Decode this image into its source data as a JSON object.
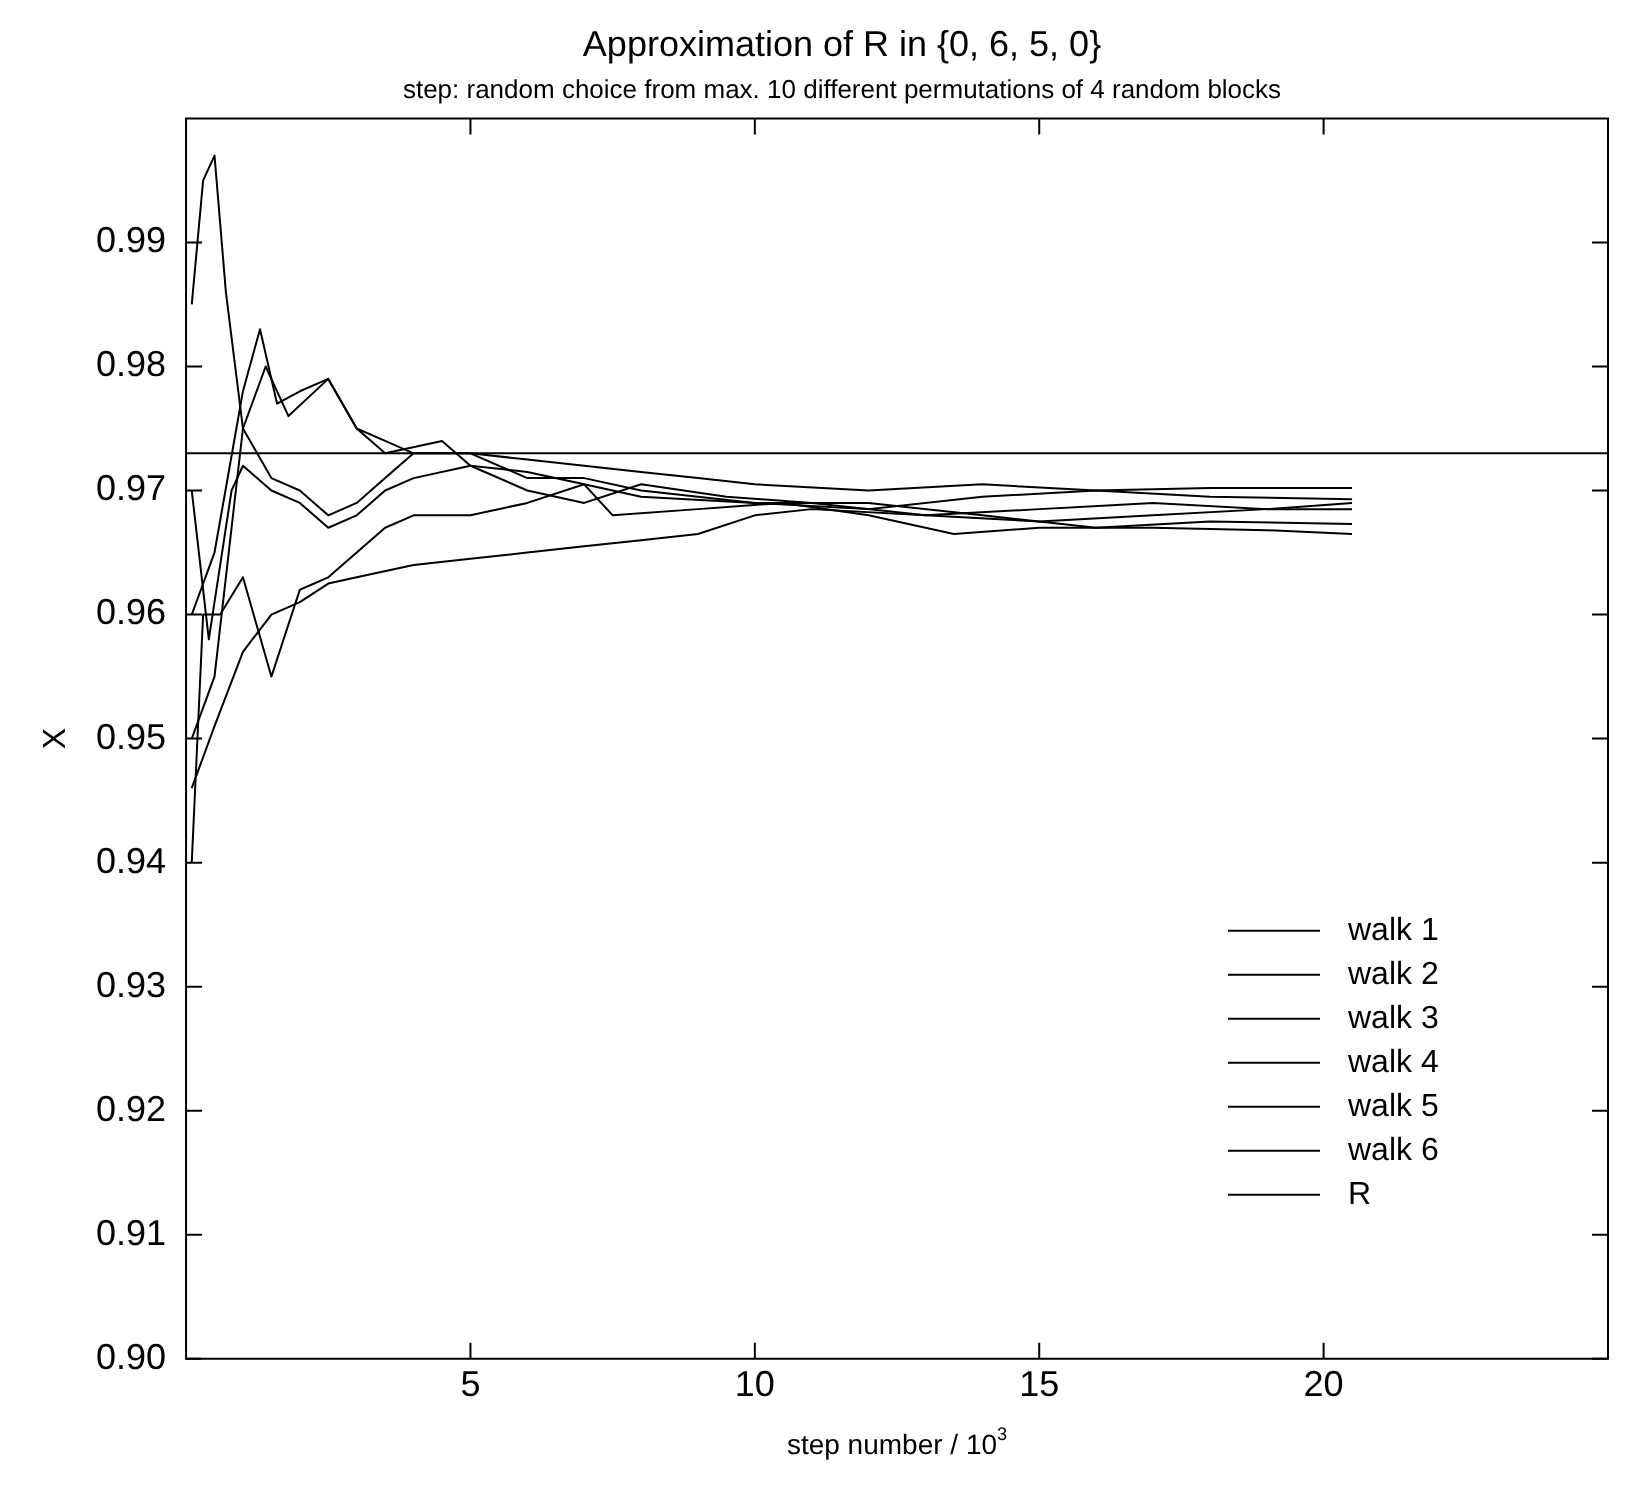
{
  "chart_data": {
    "type": "line",
    "title": "Approximation of R in {0, 6, 5, 0}",
    "subtitle": "step: random choice from max. 10 different permutations of 4 random blocks",
    "xlabel": "step number / 10$^{3}$",
    "ylabel": "X",
    "xlim": [
      0,
      25
    ],
    "xticks": [
      5,
      10,
      15,
      20
    ],
    "ylim": [
      0.9,
      1.0
    ],
    "yticks": [
      {
        "value": 0.9,
        "label": "0.90"
      },
      0.91,
      0.92,
      0.93,
      0.94,
      0.95,
      0.96,
      0.97,
      0.98,
      0.99
    ],
    "grid": false,
    "legend": "bottom right",
    "marker": "none",
    "line_style": "solid",
    "series": [
      {
        "name": "walk 1",
        "color": "#000000",
        "x": [
          0.1,
          0.3,
          0.5,
          0.7,
          1.0,
          1.5,
          2,
          2.5,
          3,
          3.5,
          4,
          5,
          6,
          7,
          8,
          9,
          10,
          12,
          14,
          16,
          18,
          20.5
        ],
        "values": [
          0.985,
          0.995,
          0.997,
          0.986,
          0.975,
          0.971,
          0.97,
          0.968,
          0.969,
          0.971,
          0.973,
          0.973,
          0.9725,
          0.972,
          0.9715,
          0.971,
          0.9705,
          0.97,
          0.9705,
          0.97,
          0.9702,
          0.9702
        ]
      },
      {
        "name": "walk 2",
        "color": "#000000",
        "x": [
          0.1,
          0.5,
          1,
          1.3,
          1.6,
          2,
          2.5,
          3,
          3.5,
          4,
          5,
          6,
          7,
          8,
          10,
          12,
          14,
          16,
          18,
          20.5
        ],
        "values": [
          0.96,
          0.965,
          0.978,
          0.983,
          0.977,
          0.978,
          0.979,
          0.975,
          0.974,
          0.973,
          0.973,
          0.971,
          0.971,
          0.97,
          0.969,
          0.9685,
          0.9695,
          0.97,
          0.9695,
          0.9693
        ]
      },
      {
        "name": "walk 3",
        "color": "#000000",
        "x": [
          0.1,
          0.5,
          1,
          1.4,
          1.8,
          2.5,
          3,
          3.5,
          4.5,
          5,
          6,
          7,
          8,
          9.5,
          11,
          13,
          15,
          17,
          19,
          20.5
        ],
        "values": [
          0.95,
          0.955,
          0.975,
          0.98,
          0.976,
          0.979,
          0.975,
          0.973,
          0.974,
          0.972,
          0.97,
          0.969,
          0.9705,
          0.9695,
          0.969,
          0.968,
          0.9685,
          0.969,
          0.9685,
          0.9685
        ]
      },
      {
        "name": "walk 4",
        "color": "#000000",
        "x": [
          0.1,
          0.3,
          0.6,
          1,
          1.5,
          2,
          2.5,
          3,
          3.5,
          4,
          5,
          6,
          7,
          8,
          10,
          12,
          14,
          16,
          18,
          20.5
        ],
        "values": [
          0.94,
          0.96,
          0.96,
          0.963,
          0.955,
          0.962,
          0.963,
          0.965,
          0.967,
          0.968,
          0.968,
          0.969,
          0.9705,
          0.9695,
          0.969,
          0.969,
          0.968,
          0.967,
          0.9675,
          0.9673
        ]
      },
      {
        "name": "walk 5",
        "color": "#000000",
        "x": [
          0.1,
          0.4,
          0.8,
          1,
          1.5,
          2,
          2.5,
          3,
          3.5,
          4,
          5,
          6,
          7,
          7.5,
          9,
          10.5,
          12,
          13.5,
          15,
          17,
          19,
          20.5
        ],
        "values": [
          0.97,
          0.958,
          0.97,
          0.972,
          0.97,
          0.969,
          0.967,
          0.968,
          0.97,
          0.971,
          0.972,
          0.9715,
          0.9705,
          0.968,
          0.9685,
          0.969,
          0.968,
          0.9665,
          0.967,
          0.967,
          0.9668,
          0.9665
        ]
      },
      {
        "name": "walk 6",
        "color": "#000000",
        "x": [
          0.1,
          0.5,
          1,
          1.5,
          2,
          2.5,
          3,
          4,
          5,
          6,
          7,
          8,
          9,
          10,
          11,
          13,
          15,
          17,
          19,
          20.5
        ],
        "values": [
          0.946,
          0.951,
          0.957,
          0.96,
          0.961,
          0.9625,
          0.963,
          0.964,
          0.9645,
          0.965,
          0.9655,
          0.966,
          0.9665,
          0.968,
          0.9685,
          0.968,
          0.9675,
          0.968,
          0.9685,
          0.969
        ]
      },
      {
        "name": "R",
        "color": "#000000",
        "x": [
          0,
          25
        ],
        "values": [
          0.973,
          0.973
        ]
      }
    ]
  }
}
